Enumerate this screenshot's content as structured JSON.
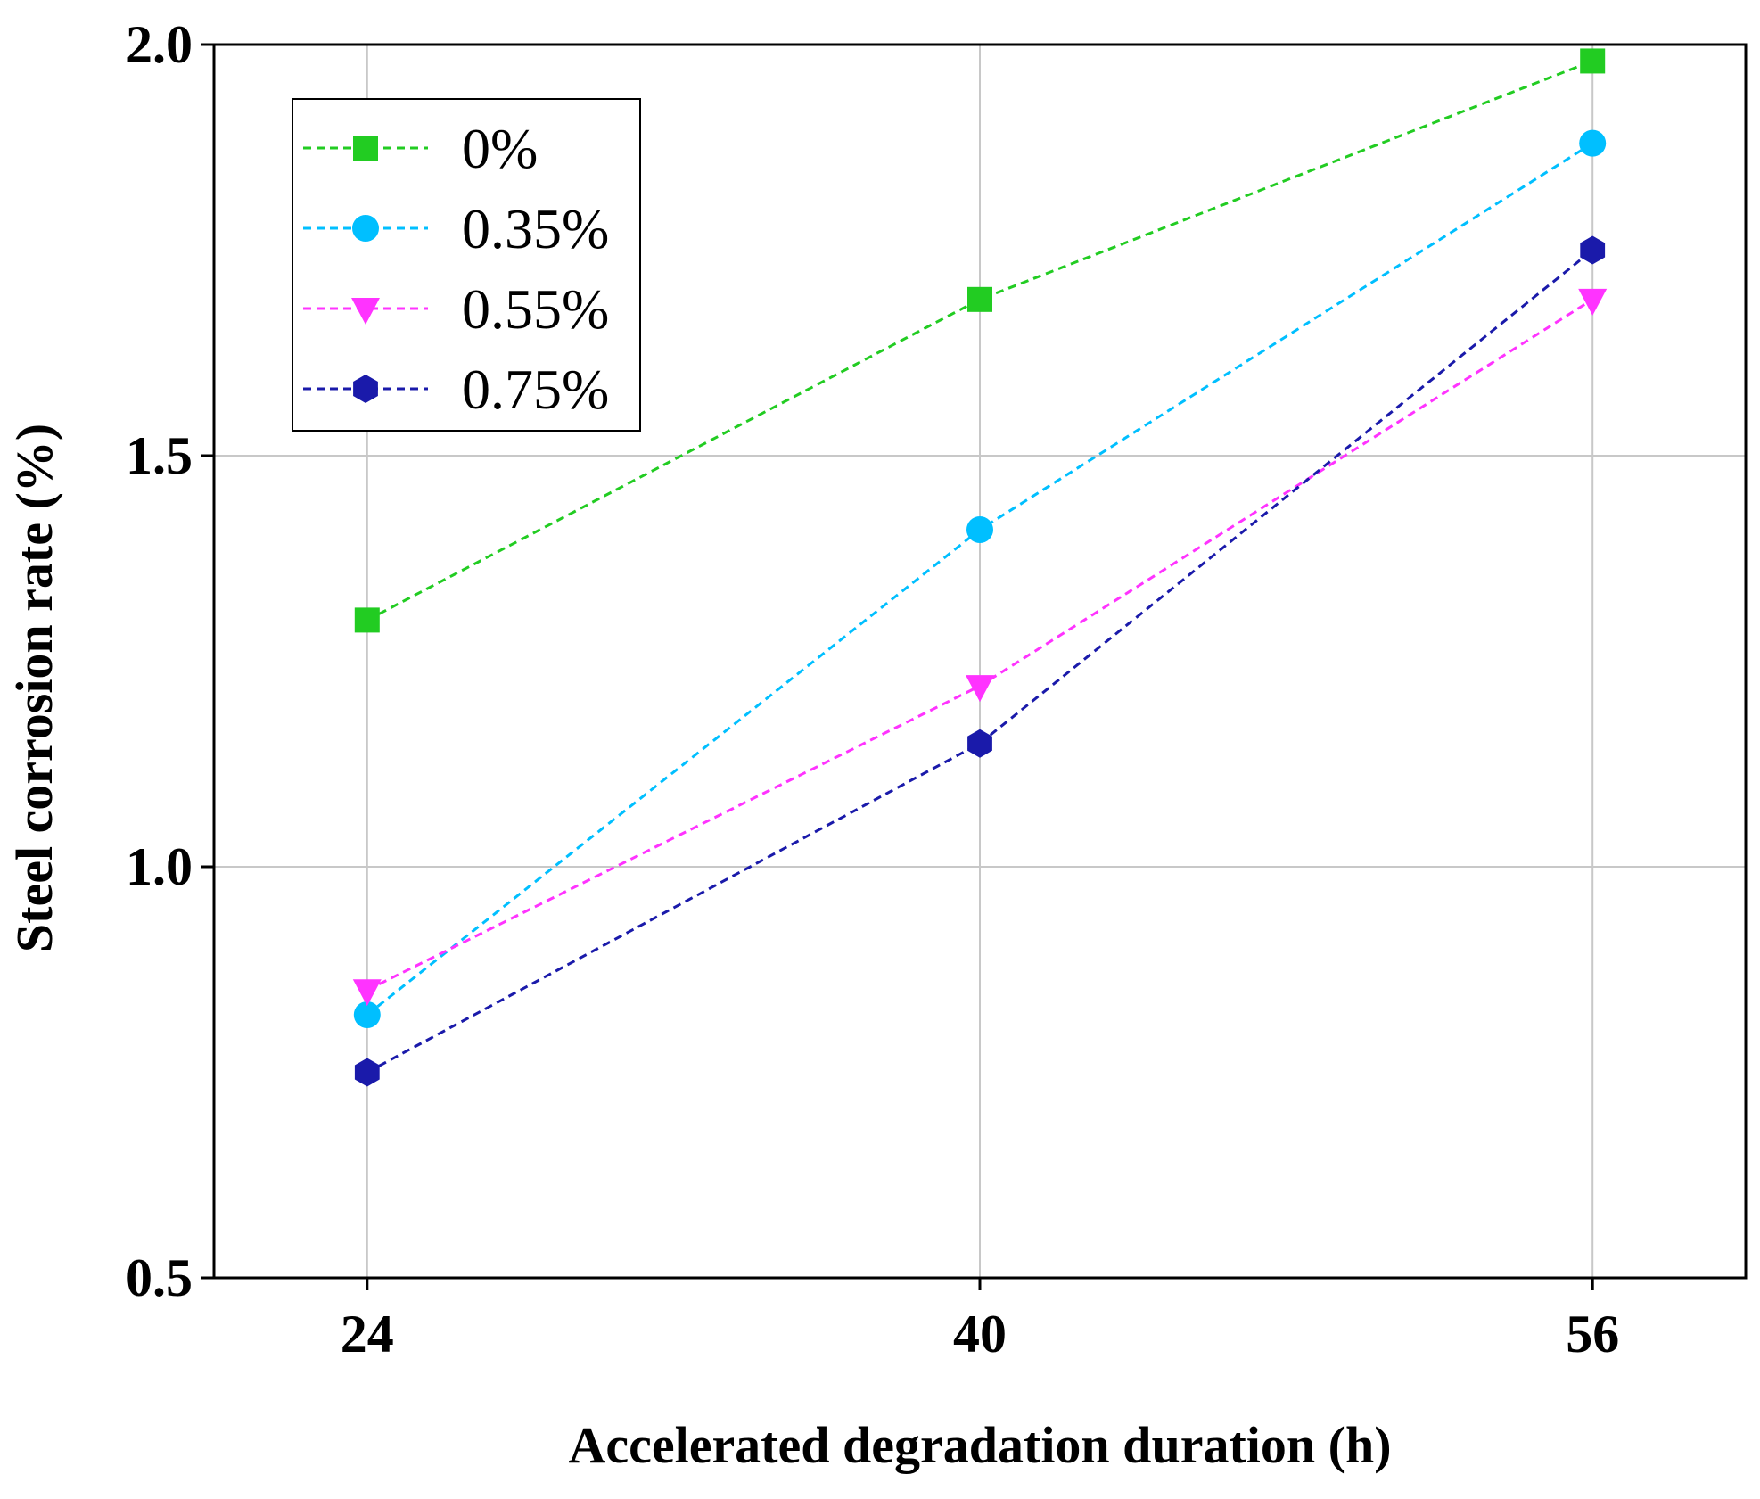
{
  "chart_data": {
    "type": "line",
    "title": "",
    "xlabel": "Accelerated degradation duration (h)",
    "ylabel": "Steel corrosion rate (%)",
    "x": [
      24,
      40,
      56
    ],
    "x_tick_labels": [
      "24",
      "40",
      "56"
    ],
    "xlim": [
      20,
      60
    ],
    "ylim": [
      0.5,
      2.0
    ],
    "y_ticks": [
      0.5,
      1.0,
      1.5,
      2.0
    ],
    "y_tick_labels": [
      "0.5",
      "1.0",
      "1.5",
      "2.0"
    ],
    "grid": true,
    "legend_position": "top-left",
    "series": [
      {
        "name": "0%",
        "color": "#22cc22",
        "marker": "square",
        "values": [
          1.3,
          1.69,
          1.98
        ]
      },
      {
        "name": "0.35%",
        "color": "#00bfff",
        "marker": "circle",
        "values": [
          0.82,
          1.41,
          1.88
        ]
      },
      {
        "name": "0.55%",
        "color": "#ff33ff",
        "marker": "triangle-down",
        "values": [
          0.85,
          1.22,
          1.69
        ]
      },
      {
        "name": "0.75%",
        "color": "#1a1aaa",
        "marker": "hexagon",
        "values": [
          0.75,
          1.15,
          1.75
        ]
      }
    ]
  }
}
